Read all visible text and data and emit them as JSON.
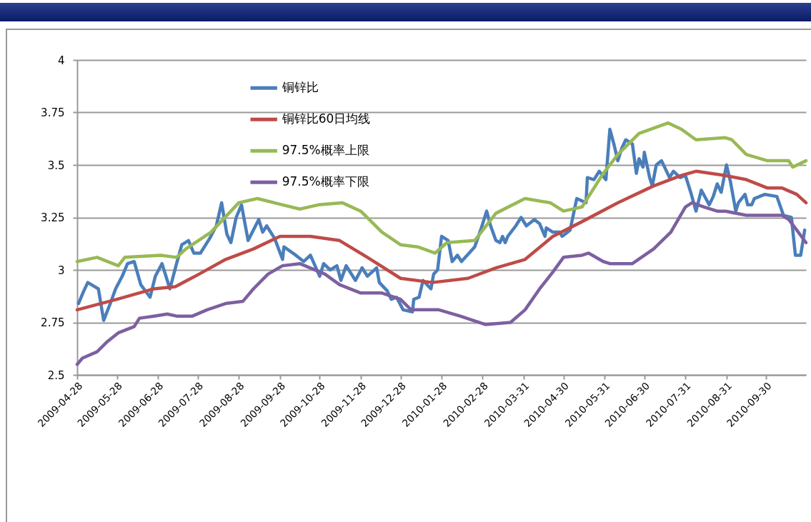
{
  "chart_data": {
    "type": "line",
    "xlim": [
      "2009-04-28",
      "2010-10-30"
    ],
    "xticks": [
      "2009-04-28",
      "2009-05-28",
      "2009-06-28",
      "2009-07-28",
      "2009-08-28",
      "2009-09-28",
      "2009-10-28",
      "2009-11-28",
      "2009-12-28",
      "2010-01-28",
      "2010-02-28",
      "2010-03-31",
      "2010-04-30",
      "2010-05-31",
      "2010-06-30",
      "2010-07-31",
      "2010-08-31",
      "2010-09-30"
    ],
    "ylim": [
      2.5,
      4
    ],
    "yticks": [
      2.5,
      2.75,
      3,
      3.25,
      3.5,
      3.75,
      4
    ],
    "grid": "y",
    "legend": "top left",
    "line_style": "solid",
    "marker": "none",
    "series": [
      {
        "name": "铜锌比",
        "color": "#4a7ebb",
        "x": [
          "2009-04-29",
          "2009-05-03",
          "2009-05-06",
          "2009-05-14",
          "2009-05-18",
          "2009-05-23",
          "2009-05-27",
          "2009-06-01",
          "2009-06-05",
          "2009-06-10",
          "2009-06-15",
          "2009-06-22",
          "2009-06-26",
          "2009-07-01",
          "2009-07-07",
          "2009-07-12",
          "2009-07-16",
          "2009-07-21",
          "2009-07-25",
          "2009-07-30",
          "2009-08-06",
          "2009-08-11",
          "2009-08-15",
          "2009-08-19",
          "2009-08-22",
          "2009-08-26",
          "2009-08-30",
          "2009-09-04",
          "2009-09-12",
          "2009-09-15",
          "2009-09-18",
          "2009-09-24",
          "2009-09-30",
          "2009-10-01",
          "2009-10-10",
          "2009-10-16",
          "2009-10-21",
          "2009-10-28",
          "2009-10-31",
          "2009-11-05",
          "2009-11-10",
          "2009-11-13",
          "2009-11-17",
          "2009-11-24",
          "2009-11-29",
          "2009-12-03",
          "2009-12-10",
          "2009-12-12",
          "2009-12-18",
          "2009-12-21",
          "2009-12-25",
          "2009-12-30",
          "2010-01-06",
          "2010-01-07",
          "2010-01-11",
          "2010-01-14",
          "2010-01-20",
          "2010-01-22",
          "2010-01-25",
          "2010-01-28",
          "2010-02-02",
          "2010-02-05",
          "2010-02-09",
          "2010-02-12",
          "2010-02-22",
          "2010-02-27",
          "2010-03-03",
          "2010-03-06",
          "2010-03-10",
          "2010-03-13",
          "2010-03-15",
          "2010-03-17",
          "2010-03-19",
          "2010-03-25",
          "2010-03-29",
          "2010-04-02",
          "2010-04-08",
          "2010-04-12",
          "2010-04-16",
          "2010-04-17",
          "2010-04-22",
          "2010-04-27",
          "2010-04-29",
          "2010-05-05",
          "2010-05-10",
          "2010-05-17",
          "2010-05-18",
          "2010-05-23",
          "2010-05-27",
          "2010-06-01",
          "2010-06-04",
          "2010-06-07",
          "2010-06-10",
          "2010-06-13",
          "2010-06-16",
          "2010-06-21",
          "2010-06-24",
          "2010-06-26",
          "2010-06-29",
          "2010-06-30",
          "2010-07-04",
          "2010-07-06",
          "2010-07-09",
          "2010-07-13",
          "2010-07-19",
          "2010-07-22",
          "2010-07-27",
          "2010-07-31",
          "2010-08-04",
          "2010-08-08",
          "2010-08-12",
          "2010-08-18",
          "2010-08-21",
          "2010-08-24",
          "2010-08-27",
          "2010-08-31",
          "2010-09-03",
          "2010-09-07",
          "2010-09-09",
          "2010-09-14",
          "2010-09-16",
          "2010-09-19",
          "2010-09-21",
          "2010-09-29",
          "2010-10-08",
          "2010-10-13",
          "2010-10-19",
          "2010-10-22",
          "2010-10-26",
          "2010-10-29"
        ],
        "values": [
          2.84,
          2.9,
          2.94,
          2.91,
          2.76,
          2.84,
          2.91,
          2.97,
          3.03,
          3.04,
          2.93,
          2.87,
          2.97,
          3.03,
          2.91,
          3.03,
          3.12,
          3.14,
          3.08,
          3.08,
          3.15,
          3.21,
          3.32,
          3.17,
          3.13,
          3.25,
          3.31,
          3.14,
          3.24,
          3.18,
          3.21,
          3.15,
          3.05,
          3.11,
          3.07,
          3.04,
          3.07,
          2.97,
          3.03,
          3.0,
          3.02,
          2.95,
          3.02,
          2.95,
          3.01,
          2.97,
          3.01,
          2.94,
          2.9,
          2.86,
          2.87,
          2.81,
          2.8,
          2.86,
          2.87,
          2.95,
          2.91,
          2.98,
          3.0,
          3.16,
          3.14,
          3.04,
          3.07,
          3.04,
          3.11,
          3.2,
          3.28,
          3.21,
          3.14,
          3.13,
          3.16,
          3.13,
          3.16,
          3.21,
          3.25,
          3.21,
          3.24,
          3.22,
          3.16,
          3.2,
          3.18,
          3.18,
          3.16,
          3.19,
          3.34,
          3.32,
          3.44,
          3.43,
          3.47,
          3.43,
          3.67,
          3.6,
          3.52,
          3.58,
          3.62,
          3.6,
          3.46,
          3.53,
          3.49,
          3.56,
          3.44,
          3.4,
          3.5,
          3.52,
          3.44,
          3.47,
          3.44,
          3.45,
          3.37,
          3.28,
          3.38,
          3.31,
          3.35,
          3.41,
          3.37,
          3.5,
          3.42,
          3.28,
          3.32,
          3.36,
          3.31,
          3.31,
          3.34,
          3.36,
          3.35,
          3.26,
          3.25,
          3.07,
          3.07,
          3.19
        ]
      },
      {
        "name": "铜锌比60日均线",
        "color": "#be4b48",
        "x": [
          "2009-04-28",
          "2009-05-28",
          "2009-06-25",
          "2009-07-11",
          "2009-07-29",
          "2009-08-18",
          "2009-09-08",
          "2009-09-28",
          "2009-10-21",
          "2009-11-12",
          "2009-12-03",
          "2009-12-28",
          "2010-01-21",
          "2010-02-17",
          "2010-03-10",
          "2010-04-01",
          "2010-04-22",
          "2010-05-14",
          "2010-06-10",
          "2010-07-07",
          "2010-07-28",
          "2010-08-08",
          "2010-08-30",
          "2010-09-15",
          "2010-10-01",
          "2010-10-12",
          "2010-10-23",
          "2010-10-30"
        ],
        "values": [
          2.81,
          2.86,
          2.91,
          2.92,
          2.98,
          3.05,
          3.1,
          3.16,
          3.16,
          3.14,
          3.06,
          2.96,
          2.94,
          2.96,
          3.01,
          3.05,
          3.16,
          3.23,
          3.32,
          3.4,
          3.45,
          3.47,
          3.45,
          3.43,
          3.39,
          3.39,
          3.36,
          3.32
        ]
      },
      {
        "name": "97.5%概率上限",
        "color": "#98b954",
        "x": [
          "2009-04-28",
          "2009-05-13",
          "2009-05-29",
          "2009-06-03",
          "2009-06-30",
          "2009-07-12",
          "2009-07-19",
          "2009-08-07",
          "2009-08-28",
          "2009-09-11",
          "2009-09-30",
          "2009-10-13",
          "2009-10-27",
          "2009-11-14",
          "2009-11-28",
          "2009-12-14",
          "2009-12-28",
          "2010-01-10",
          "2010-01-23",
          "2010-02-01",
          "2010-02-22",
          "2010-03-10",
          "2010-04-01",
          "2010-04-20",
          "2010-04-30",
          "2010-05-14",
          "2010-05-30",
          "2010-06-10",
          "2010-06-26",
          "2010-07-18",
          "2010-07-28",
          "2010-08-08",
          "2010-08-30",
          "2010-09-04",
          "2010-09-15",
          "2010-10-01",
          "2010-10-17",
          "2010-10-20",
          "2010-10-30"
        ],
        "values": [
          3.04,
          3.06,
          3.02,
          3.06,
          3.07,
          3.06,
          3.1,
          3.18,
          3.32,
          3.34,
          3.31,
          3.29,
          3.31,
          3.32,
          3.28,
          3.18,
          3.12,
          3.11,
          3.08,
          3.13,
          3.14,
          3.27,
          3.34,
          3.32,
          3.28,
          3.3,
          3.46,
          3.55,
          3.65,
          3.7,
          3.67,
          3.62,
          3.63,
          3.62,
          3.55,
          3.52,
          3.52,
          3.49,
          3.52
        ]
      },
      {
        "name": "97.5%概率下限",
        "color": "#7d60a0",
        "x": [
          "2009-04-28",
          "2009-05-02",
          "2009-05-13",
          "2009-05-21",
          "2009-05-29",
          "2009-06-10",
          "2009-06-14",
          "2009-06-25",
          "2009-07-05",
          "2009-07-12",
          "2009-07-24",
          "2009-08-04",
          "2009-08-18",
          "2009-08-31",
          "2009-09-08",
          "2009-09-19",
          "2009-09-30",
          "2009-10-13",
          "2009-11-01",
          "2009-11-12",
          "2009-11-28",
          "2009-12-14",
          "2009-12-28",
          "2010-01-05",
          "2010-01-26",
          "2010-02-11",
          "2010-03-02",
          "2010-03-21",
          "2010-04-01",
          "2010-04-12",
          "2010-04-22",
          "2010-04-30",
          "2010-05-14",
          "2010-05-19",
          "2010-05-30",
          "2010-06-04",
          "2010-06-21",
          "2010-07-07",
          "2010-07-20",
          "2010-07-31",
          "2010-08-05",
          "2010-08-14",
          "2010-08-24",
          "2010-08-30",
          "2010-09-15",
          "2010-10-12",
          "2010-10-17",
          "2010-10-23",
          "2010-10-30"
        ],
        "values": [
          2.55,
          2.58,
          2.61,
          2.66,
          2.7,
          2.73,
          2.77,
          2.78,
          2.79,
          2.78,
          2.78,
          2.81,
          2.84,
          2.85,
          2.91,
          2.98,
          3.02,
          3.03,
          2.98,
          2.93,
          2.89,
          2.89,
          2.86,
          2.81,
          2.81,
          2.78,
          2.74,
          2.75,
          2.81,
          2.91,
          2.99,
          3.06,
          3.07,
          3.08,
          3.04,
          3.03,
          3.03,
          3.1,
          3.18,
          3.3,
          3.32,
          3.3,
          3.28,
          3.28,
          3.26,
          3.26,
          3.24,
          3.19,
          3.13
        ]
      }
    ]
  }
}
